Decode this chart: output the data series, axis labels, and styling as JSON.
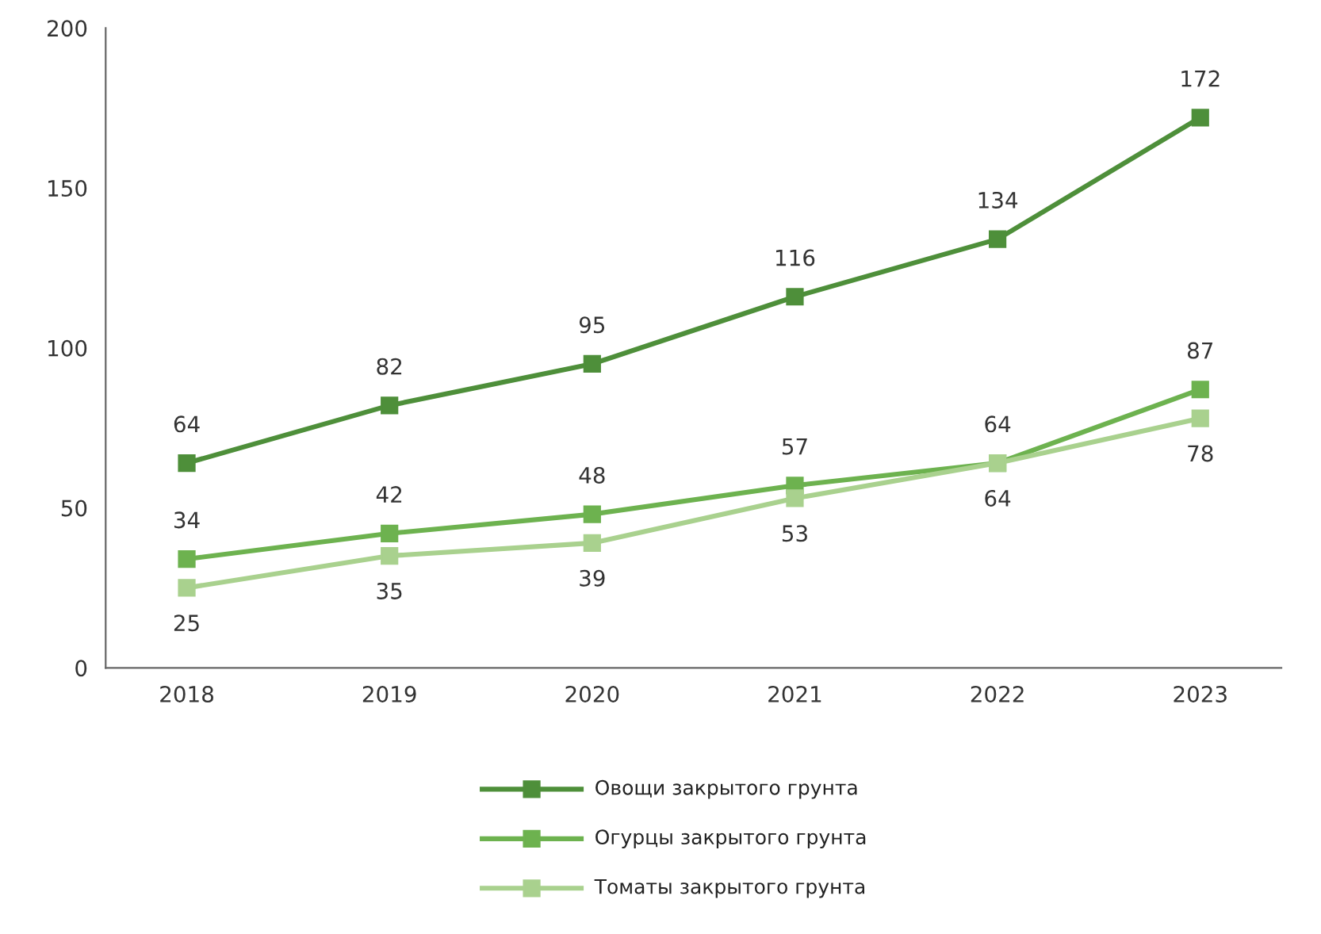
{
  "chart_data": {
    "type": "line",
    "categories": [
      "2018",
      "2019",
      "2020",
      "2021",
      "2022",
      "2023"
    ],
    "series": [
      {
        "name": "Овощи закрытого грунта",
        "color": "#4e8f3a",
        "values": [
          64,
          82,
          95,
          116,
          134,
          172
        ]
      },
      {
        "name": "Огурцы закрытого грунта",
        "color": "#6db24f",
        "values": [
          34,
          42,
          48,
          57,
          64,
          87
        ]
      },
      {
        "name": "Томаты закрытого грунта",
        "color": "#a9d18e",
        "values": [
          25,
          35,
          39,
          53,
          64,
          78
        ]
      }
    ],
    "ylim": [
      0,
      200
    ],
    "yticks": [
      0,
      50,
      100,
      150,
      200
    ],
    "marker": "square",
    "line_style": "solid",
    "grid": false,
    "legend": "bottom",
    "data_labels": true
  }
}
